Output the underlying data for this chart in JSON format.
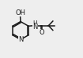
{
  "bg_color": "#eeeeee",
  "bond_color": "#1a1a1a",
  "text_color": "#1a1a1a",
  "line_width": 1.1,
  "font_size": 6.0,
  "figsize": [
    1.05,
    0.74
  ],
  "dpi": 100,
  "xlim": [
    0,
    10.5
  ],
  "ylim": [
    0,
    7.4
  ]
}
